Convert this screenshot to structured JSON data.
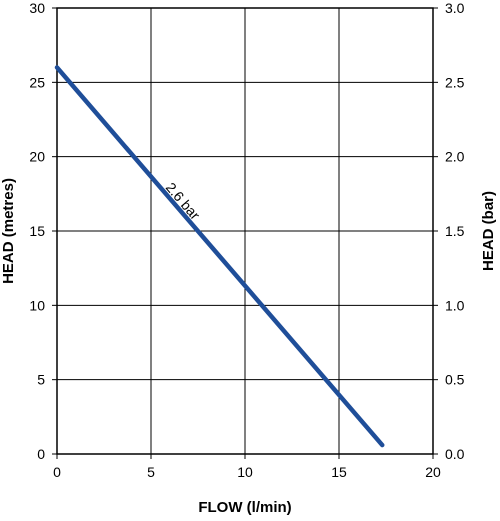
{
  "chart_data": {
    "type": "line",
    "title": "",
    "xlabel": "FLOW (l/min)",
    "ylabel": "HEAD (metres)",
    "y2label": "HEAD (bar)",
    "xlim": [
      0,
      20
    ],
    "ylim": [
      0,
      30
    ],
    "y2lim": [
      0.0,
      3.0
    ],
    "xticks": [
      "0",
      "5",
      "10",
      "15",
      "20"
    ],
    "yticks": [
      "0",
      "5",
      "10",
      "15",
      "20",
      "25",
      "30"
    ],
    "y2ticks": [
      "0.0",
      "0.5",
      "1.0",
      "1.5",
      "2.0",
      "2.5",
      "3.0"
    ],
    "grid": true,
    "series": [
      {
        "x": [
          0,
          17.3
        ],
        "y": [
          26,
          0.6
        ],
        "color": "#1f4e99"
      }
    ],
    "annotations": [
      {
        "text": "2.6 bar",
        "x": 6.5,
        "y": 16.8
      }
    ]
  }
}
